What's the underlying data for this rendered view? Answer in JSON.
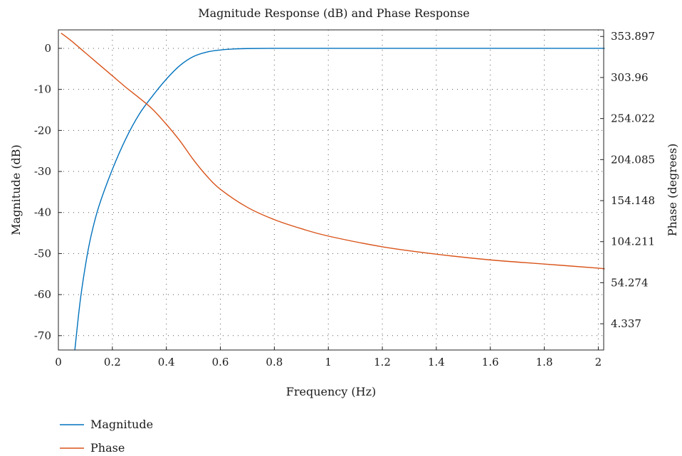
{
  "chart_data": {
    "type": "line",
    "title": "Magnitude Response (dB) and Phase Response",
    "xlabel": "Frequency (Hz)",
    "ylabel_left": "Magnitude (dB)",
    "ylabel_right": "Phase (degrees)",
    "xlim": [
      0,
      2.02
    ],
    "ylim_left": [
      -73.5,
      4.5
    ],
    "ylim_right": [
      -27.6,
      361.9
    ],
    "grid": true,
    "legend_position": "bottom-left",
    "x_ticks": [
      0,
      0.2,
      0.4,
      0.6,
      0.8,
      1,
      1.2,
      1.4,
      1.6,
      1.8,
      2
    ],
    "x_tick_labels": [
      "0",
      "0.2",
      "0.4",
      "0.6",
      "0.8",
      "1",
      "1.2",
      "1.4",
      "1.6",
      "1.8",
      "2"
    ],
    "y_left_ticks": [
      0,
      -10,
      -20,
      -30,
      -40,
      -50,
      -60,
      -70
    ],
    "y_left_tick_labels": [
      "0",
      "-10",
      "-20",
      "-30",
      "-40",
      "-50",
      "-60",
      "-70"
    ],
    "y_right_ticks": [
      353.897,
      303.96,
      254.022,
      204.085,
      154.148,
      104.211,
      54.274,
      4.337
    ],
    "y_right_tick_labels": [
      "353.897",
      "303.96",
      "254.022",
      "204.085",
      "154.148",
      "104.211",
      "54.274",
      "4.337"
    ],
    "series": [
      {
        "name": "Magnitude",
        "axis": "left",
        "color": "#0072BD",
        "x": [
          0.061,
          0.08,
          0.1,
          0.12,
          0.15,
          0.2,
          0.25,
          0.3,
          0.35,
          0.4,
          0.45,
          0.5,
          0.55,
          0.6,
          0.65,
          0.7,
          0.8,
          1.0,
          1.2,
          1.4,
          1.6,
          1.8,
          2.0,
          2.02
        ],
        "y": [
          -73.5,
          -62,
          -53,
          -46,
          -38.5,
          -29.5,
          -22,
          -16,
          -11.5,
          -7.5,
          -4.2,
          -2.0,
          -0.9,
          -0.4,
          -0.15,
          -0.05,
          0,
          0,
          0,
          0,
          0,
          0,
          0,
          0
        ]
      },
      {
        "name": "Phase",
        "axis": "right",
        "color": "#D95319",
        "x": [
          0.01,
          0.05,
          0.1,
          0.15,
          0.2,
          0.25,
          0.3,
          0.35,
          0.4,
          0.45,
          0.5,
          0.55,
          0.6,
          0.7,
          0.8,
          0.9,
          1.0,
          1.2,
          1.4,
          1.6,
          1.8,
          2.0,
          2.02
        ],
        "y": [
          358,
          348,
          334,
          320,
          306,
          292,
          279,
          265,
          247,
          227,
          204,
          184,
          168,
          146,
          131,
          120,
          111,
          98,
          89,
          82,
          77,
          72,
          71
        ]
      }
    ]
  }
}
